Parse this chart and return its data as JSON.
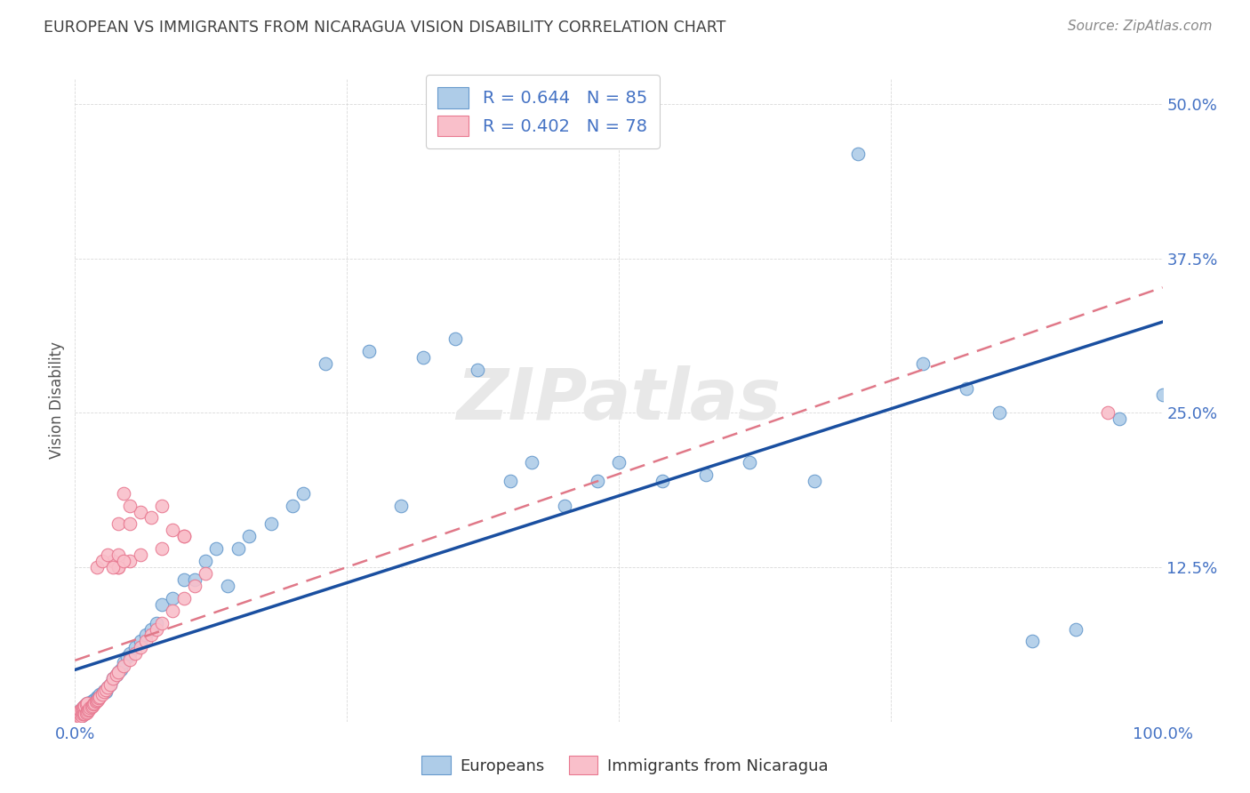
{
  "title": "EUROPEAN VS IMMIGRANTS FROM NICARAGUA VISION DISABILITY CORRELATION CHART",
  "source": "Source: ZipAtlas.com",
  "ylabel": "Vision Disability",
  "xlim": [
    0.0,
    1.0
  ],
  "ylim": [
    0.0,
    0.52
  ],
  "yticks": [
    0.0,
    0.125,
    0.25,
    0.375,
    0.5
  ],
  "yticklabels": [
    "",
    "12.5%",
    "25.0%",
    "37.5%",
    "50.0%"
  ],
  "xticks": [
    0.0,
    0.25,
    0.5,
    0.75,
    1.0
  ],
  "xticklabels": [
    "0.0%",
    "",
    "",
    "",
    "100.0%"
  ],
  "european_color": "#aecce8",
  "european_edge": "#6699cc",
  "nicaragua_color": "#f9bfca",
  "nicaragua_edge": "#e87890",
  "blue_line_color": "#1a4fa0",
  "pink_line_color": "#e07888",
  "background_color": "#ffffff",
  "grid_color": "#d0d0d0",
  "title_color": "#404040",
  "source_color": "#888888",
  "axis_label_color": "#555555",
  "tick_color": "#4472c4",
  "watermark": "ZIPatlas",
  "watermark_color": "#e8e8e8",
  "legend1_label1": "R = 0.644   N = 85",
  "legend1_label2": "R = 0.402   N = 78",
  "legend2_label1": "Europeans",
  "legend2_label2": "Immigrants from Nicaragua",
  "eu_x": [
    0.001,
    0.002,
    0.002,
    0.003,
    0.003,
    0.004,
    0.004,
    0.005,
    0.005,
    0.006,
    0.006,
    0.007,
    0.007,
    0.008,
    0.008,
    0.009,
    0.009,
    0.01,
    0.01,
    0.011,
    0.011,
    0.012,
    0.013,
    0.014,
    0.015,
    0.015,
    0.016,
    0.017,
    0.018,
    0.02,
    0.021,
    0.022,
    0.023,
    0.025,
    0.027,
    0.028,
    0.03,
    0.032,
    0.035,
    0.038,
    0.04,
    0.042,
    0.045,
    0.048,
    0.05,
    0.055,
    0.06,
    0.065,
    0.07,
    0.075,
    0.08,
    0.09,
    0.1,
    0.11,
    0.12,
    0.13,
    0.14,
    0.15,
    0.16,
    0.18,
    0.2,
    0.21,
    0.23,
    0.27,
    0.3,
    0.32,
    0.35,
    0.37,
    0.4,
    0.42,
    0.45,
    0.48,
    0.5,
    0.54,
    0.58,
    0.62,
    0.68,
    0.72,
    0.78,
    0.82,
    0.85,
    0.88,
    0.92,
    0.96,
    1.0
  ],
  "eu_y": [
    0.003,
    0.004,
    0.006,
    0.005,
    0.007,
    0.004,
    0.008,
    0.006,
    0.009,
    0.005,
    0.01,
    0.007,
    0.011,
    0.006,
    0.012,
    0.008,
    0.013,
    0.009,
    0.014,
    0.01,
    0.015,
    0.011,
    0.012,
    0.013,
    0.014,
    0.016,
    0.015,
    0.017,
    0.018,
    0.02,
    0.019,
    0.021,
    0.022,
    0.023,
    0.025,
    0.024,
    0.028,
    0.03,
    0.035,
    0.038,
    0.04,
    0.042,
    0.048,
    0.052,
    0.055,
    0.06,
    0.065,
    0.07,
    0.075,
    0.08,
    0.095,
    0.1,
    0.115,
    0.115,
    0.13,
    0.14,
    0.11,
    0.14,
    0.15,
    0.16,
    0.175,
    0.185,
    0.29,
    0.3,
    0.175,
    0.295,
    0.31,
    0.285,
    0.195,
    0.21,
    0.175,
    0.195,
    0.21,
    0.195,
    0.2,
    0.21,
    0.195,
    0.46,
    0.29,
    0.27,
    0.25,
    0.065,
    0.075,
    0.245,
    0.265
  ],
  "ni_x": [
    0.001,
    0.001,
    0.002,
    0.002,
    0.003,
    0.003,
    0.004,
    0.004,
    0.005,
    0.005,
    0.005,
    0.006,
    0.006,
    0.007,
    0.007,
    0.008,
    0.008,
    0.009,
    0.009,
    0.01,
    0.01,
    0.011,
    0.011,
    0.012,
    0.013,
    0.014,
    0.015,
    0.016,
    0.017,
    0.018,
    0.019,
    0.02,
    0.021,
    0.022,
    0.023,
    0.025,
    0.027,
    0.028,
    0.03,
    0.032,
    0.035,
    0.038,
    0.04,
    0.045,
    0.05,
    0.055,
    0.06,
    0.065,
    0.07,
    0.075,
    0.08,
    0.09,
    0.1,
    0.11,
    0.12,
    0.04,
    0.05,
    0.06,
    0.08,
    0.1,
    0.035,
    0.04,
    0.045,
    0.05,
    0.06,
    0.07,
    0.08,
    0.09,
    0.1,
    0.04,
    0.02,
    0.025,
    0.03,
    0.035,
    0.04,
    0.045,
    0.95,
    0.05
  ],
  "ni_y": [
    0.003,
    0.005,
    0.004,
    0.006,
    0.003,
    0.007,
    0.005,
    0.008,
    0.004,
    0.006,
    0.009,
    0.005,
    0.01,
    0.006,
    0.011,
    0.007,
    0.012,
    0.006,
    0.013,
    0.007,
    0.014,
    0.008,
    0.015,
    0.009,
    0.01,
    0.011,
    0.012,
    0.013,
    0.014,
    0.015,
    0.016,
    0.017,
    0.018,
    0.019,
    0.02,
    0.022,
    0.024,
    0.026,
    0.028,
    0.03,
    0.035,
    0.038,
    0.04,
    0.045,
    0.05,
    0.055,
    0.06,
    0.065,
    0.07,
    0.075,
    0.08,
    0.09,
    0.1,
    0.11,
    0.12,
    0.125,
    0.13,
    0.135,
    0.14,
    0.15,
    0.13,
    0.16,
    0.185,
    0.16,
    0.17,
    0.165,
    0.175,
    0.155,
    0.15,
    0.125,
    0.125,
    0.13,
    0.135,
    0.125,
    0.135,
    0.13,
    0.25,
    0.175
  ]
}
